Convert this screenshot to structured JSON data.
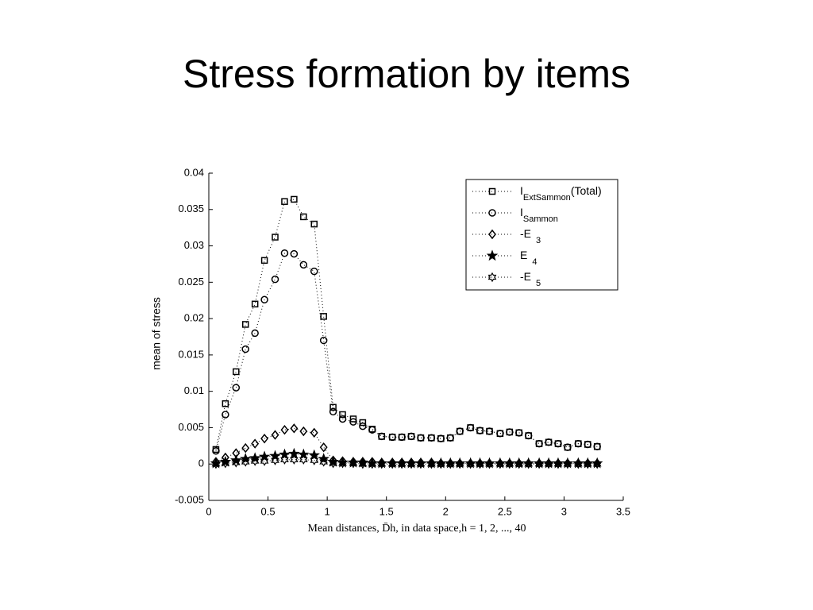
{
  "chart_data": {
    "type": "scatter",
    "title": "Stress formation by items",
    "xlabel": "Mean distances, D̄h, in data space,h = 1, 2, ..., 40",
    "ylabel": "mean of stress",
    "x": [
      0.06,
      0.14,
      0.23,
      0.31,
      0.39,
      0.47,
      0.56,
      0.64,
      0.72,
      0.8,
      0.89,
      0.97,
      1.05,
      1.13,
      1.22,
      1.3,
      1.38,
      1.46,
      1.55,
      1.63,
      1.71,
      1.79,
      1.88,
      1.96,
      2.04,
      2.12,
      2.21,
      2.29,
      2.37,
      2.46,
      2.54,
      2.62,
      2.7,
      2.79,
      2.87,
      2.95,
      3.03,
      3.12,
      3.2,
      3.28
    ],
    "series": [
      {
        "name": "I",
        "subscript": "ExtSammon",
        "suffix": "(Total)",
        "marker": "square",
        "color": "#000000",
        "values": [
          0.002,
          0.0083,
          0.0127,
          0.0192,
          0.022,
          0.028,
          0.0312,
          0.0361,
          0.0364,
          0.034,
          0.033,
          0.0203,
          0.0078,
          0.0068,
          0.0062,
          0.0057,
          0.0048,
          0.0038,
          0.0037,
          0.0037,
          0.0038,
          0.0036,
          0.0036,
          0.0035,
          0.0036,
          0.0045,
          0.005,
          0.0046,
          0.0045,
          0.0042,
          0.0044,
          0.0043,
          0.0039,
          0.0028,
          0.003,
          0.0028,
          0.0023,
          0.0028,
          0.0027,
          0.0024
        ]
      },
      {
        "name": "I",
        "subscript": "Sammon",
        "marker": "circle",
        "color": "#000000",
        "values": [
          0.0018,
          0.0068,
          0.0105,
          0.0158,
          0.018,
          0.0226,
          0.0254,
          0.029,
          0.0289,
          0.0274,
          0.0265,
          0.017,
          0.0072,
          0.0062,
          0.0058,
          0.0052,
          0.0047,
          0.0038,
          0.0037,
          0.0037,
          0.0038,
          0.0036,
          0.0036,
          0.0035,
          0.0036,
          0.0045,
          0.005,
          0.0046,
          0.0045,
          0.0042,
          0.0044,
          0.0043,
          0.0039,
          0.0028,
          0.003,
          0.0028,
          0.0023,
          0.0028,
          0.0027,
          0.0024
        ]
      },
      {
        "name": "-E",
        "subscript": "3",
        "marker": "diamond",
        "color": "#000000",
        "values": [
          0.0003,
          0.0009,
          0.0015,
          0.0022,
          0.0028,
          0.0035,
          0.004,
          0.0047,
          0.0049,
          0.0045,
          0.0043,
          0.0023,
          0.0005,
          0.0004,
          0.0003,
          0.0003,
          0.0003,
          0.0002,
          0.0002,
          0.0002,
          0.0002,
          0.0002,
          0.0002,
          0.0001,
          0.0001,
          0.0001,
          0.0001,
          0.0001,
          0.0001,
          0.0001,
          0.0001,
          0.0001,
          0.0001,
          0.0001,
          0.0001,
          0.0001,
          0.0001,
          0.0001,
          0.0001,
          0.0001
        ]
      },
      {
        "name": "E",
        "subscript": "4",
        "marker": "star",
        "color": "#000000",
        "values": [
          0.0001,
          0.0003,
          0.0005,
          0.0007,
          0.0008,
          0.001,
          0.0011,
          0.0013,
          0.0014,
          0.0013,
          0.0012,
          0.0007,
          0.0003,
          0.0002,
          0.0002,
          0.0002,
          0.0001,
          0.0001,
          0.0001,
          0.0001,
          0.0001,
          0.0001,
          0.0001,
          0.0001,
          0.0001,
          0.0001,
          0.0001,
          0.0001,
          0.0001,
          0.0001,
          0.0001,
          0.0001,
          0.0001,
          0.0001,
          0.0001,
          0.0001,
          0.0001,
          0.0001,
          0.0001,
          0.0001
        ]
      },
      {
        "name": "-E",
        "subscript": "5",
        "marker": "hexagram",
        "color": "#000000",
        "values": [
          0,
          0.0001,
          0.0002,
          0.0003,
          0.0004,
          0.0004,
          0.0005,
          0.0006,
          0.0006,
          0.0006,
          0.0005,
          0.0003,
          0.0001,
          0.0001,
          0.0001,
          0,
          0,
          0,
          0,
          0,
          0,
          0,
          0,
          0,
          0,
          0,
          0,
          0,
          0,
          0,
          0,
          0,
          0,
          0,
          0,
          0,
          0,
          0,
          0,
          0
        ]
      }
    ],
    "xlim": [
      0,
      3.5
    ],
    "xticks": [
      0,
      0.5,
      1,
      1.5,
      2,
      2.5,
      3,
      3.5
    ],
    "ylim": [
      -0.005,
      0.04
    ],
    "yticks": [
      -0.005,
      0,
      0.005,
      0.01,
      0.015,
      0.02,
      0.025,
      0.03,
      0.035,
      0.04
    ],
    "legend": "top-right",
    "grid": false
  }
}
